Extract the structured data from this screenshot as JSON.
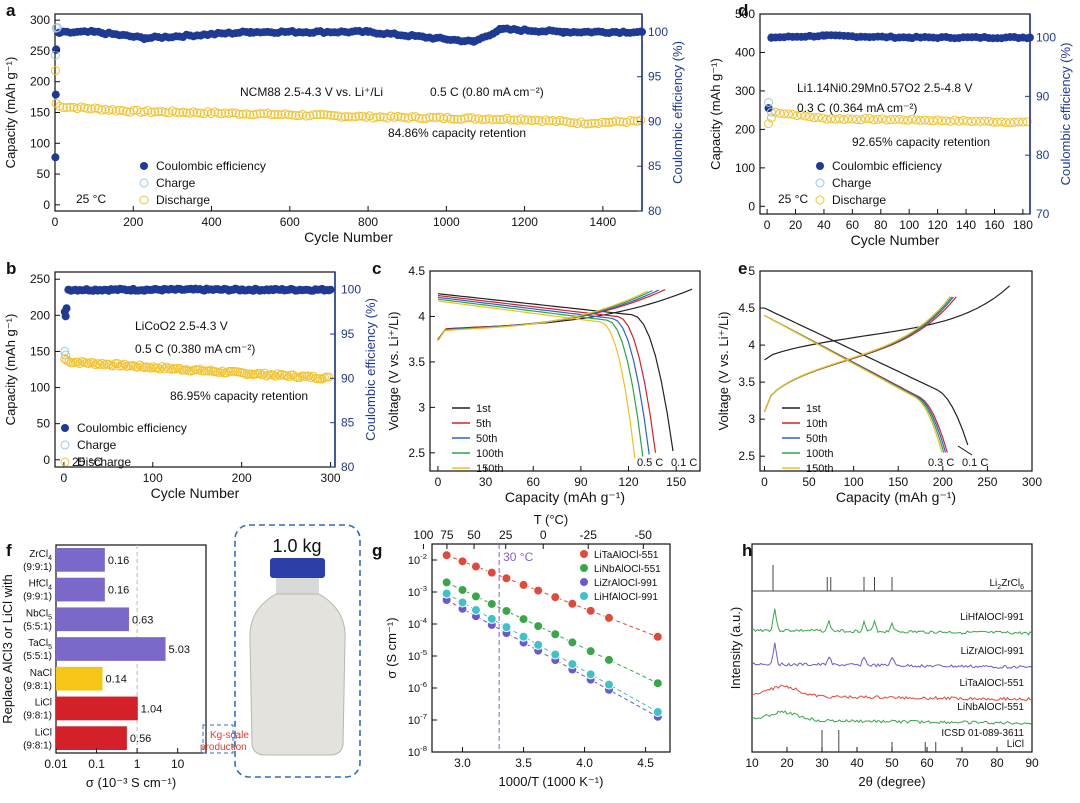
{
  "colors": {
    "ce": "#1f3a93",
    "charge": "#9ec6e6",
    "discharge": "#f2c230",
    "purple": "#7b68c8",
    "yellow": "#f5c518",
    "red": "#d42029",
    "dash_blue": "#2f6fbf",
    "guide_purple": "#8b5cc9",
    "red_text": "#e0402a",
    "ta": "#e04a3b",
    "nb": "#3aa64a",
    "zr": "#6a5acd",
    "hf": "#3ec3c9",
    "xrd_ref": "#444444"
  },
  "chart_data": [
    {
      "panel": "a",
      "type": "scatter",
      "xlabel": "Cycle Number",
      "ylabel": "Capacity (mAh g⁻¹)",
      "y2label": "Coulombic efficiency (%)",
      "xlim": [
        0,
        1500
      ],
      "ylim": [
        -10,
        310
      ],
      "y2lim": [
        80,
        102
      ],
      "xticks": [
        0,
        200,
        400,
        600,
        800,
        1000,
        1200,
        1400
      ],
      "yticks": [
        0,
        50,
        100,
        150,
        200,
        250,
        300
      ],
      "y2ticks": [
        80,
        85,
        90,
        95,
        100
      ],
      "series": [
        {
          "name": "Coulombic efficiency",
          "axis": "right",
          "x": [
            1,
            2,
            3,
            10,
            100,
            230,
            500,
            800,
            1070,
            1140,
            1300,
            1500
          ],
          "values": [
            86,
            93,
            98,
            99.9,
            100,
            99.3,
            100,
            100,
            98.9,
            100.3,
            100,
            100
          ]
        },
        {
          "name": "Charge",
          "axis": "left",
          "x": [
            1,
            3,
            6
          ],
          "values": [
            243,
            287,
            288
          ]
        },
        {
          "name": "Discharge",
          "axis": "left",
          "x": [
            1,
            3,
            10,
            200,
            500,
            800,
            1000,
            1200,
            1350,
            1500
          ],
          "values": [
            218,
            165,
            160,
            152,
            148,
            143,
            141,
            139,
            133,
            136
          ]
        }
      ],
      "annotations": [
        "NCM88 2.5-4.3 V vs. Li⁺/Li",
        "0.5 C (0.80 mA cm⁻²)",
        "84.86% capacity retention",
        "25 °C"
      ]
    },
    {
      "panel": "d",
      "type": "scatter",
      "xlabel": "Cycle Number",
      "ylabel": "Capacity (mAh g⁻¹)",
      "y2label": "Coulombic efficiency (%)",
      "xlim": [
        -5,
        185
      ],
      "ylim": [
        -20,
        500
      ],
      "y2lim": [
        70,
        104
      ],
      "xticks": [
        0,
        20,
        40,
        60,
        80,
        100,
        120,
        140,
        160,
        180
      ],
      "yticks": [
        0,
        100,
        200,
        300,
        400,
        500
      ],
      "y2ticks": [
        70,
        80,
        90,
        100
      ],
      "series": [
        {
          "name": "Coulombic efficiency",
          "axis": "right",
          "x": [
            1,
            3,
            40,
            100,
            185
          ],
          "values": [
            88,
            100,
            100.3,
            100,
            100
          ]
        },
        {
          "name": "Charge",
          "axis": "left",
          "x": [
            1,
            3
          ],
          "values": [
            270,
            245
          ]
        },
        {
          "name": "Discharge",
          "axis": "left",
          "x": [
            1,
            5,
            40,
            100,
            185
          ],
          "values": [
            215,
            245,
            228,
            225,
            218
          ]
        }
      ],
      "annotations": [
        "Li1.14Ni0.29Mn0.57O2 2.5-4.8 V",
        "0.3 C (0.364 mA cm⁻²)",
        "92.65% capacity retention",
        "25 °C"
      ]
    },
    {
      "panel": "b",
      "type": "scatter",
      "xlabel": "Cycle Number",
      "ylabel": "Capacity (mAh g⁻¹)",
      "y2label": "Coulombic efficiency (%)",
      "xlim": [
        -10,
        305
      ],
      "ylim": [
        -10,
        260
      ],
      "y2lim": [
        80,
        102
      ],
      "xticks": [
        0,
        100,
        200,
        300
      ],
      "yticks": [
        0,
        50,
        100,
        150,
        200,
        250
      ],
      "y2ticks": [
        80,
        85,
        90,
        95,
        100
      ],
      "series": [
        {
          "name": "Coulombic efficiency",
          "axis": "right",
          "x": [
            1,
            2,
            5,
            100,
            300
          ],
          "values": [
            97.5,
            97,
            100,
            100,
            100
          ]
        },
        {
          "name": "Charge",
          "axis": "left",
          "x": [
            1,
            2
          ],
          "values": [
            150,
            145
          ]
        },
        {
          "name": "Discharge",
          "axis": "left",
          "x": [
            1,
            5,
            100,
            200,
            300
          ],
          "values": [
            140,
            136,
            128,
            120,
            113
          ]
        }
      ],
      "annotations": [
        "LiCoO2 2.5-4.3 V",
        "0.5 C (0.380 mA cm⁻²)",
        "86.95% capacity retention",
        "25 °C"
      ]
    },
    {
      "panel": "c",
      "type": "line",
      "xlabel": "Capacity (mAh g⁻¹)",
      "ylabel": "Voltage (V vs. Li⁺/Li)",
      "xlim": [
        -5,
        165
      ],
      "ylim": [
        2.3,
        4.5
      ],
      "xticks": [
        0,
        30,
        60,
        90,
        120,
        150
      ],
      "yticks": [
        2.5,
        3.0,
        3.5,
        4.0,
        4.5
      ],
      "series": [
        {
          "name": "1st",
          "cap": 148,
          "charge_end": 160
        },
        {
          "name": "5th",
          "cap": 137,
          "charge_end": 143
        },
        {
          "name": "50th",
          "cap": 133,
          "charge_end": 139
        },
        {
          "name": "100th",
          "cap": 129,
          "charge_end": 135
        },
        {
          "name": "150th",
          "cap": 124,
          "charge_end": 132
        }
      ],
      "annotations": [
        "0.5 C",
        "0.1 C"
      ]
    },
    {
      "panel": "e",
      "type": "line",
      "xlabel": "Capacity (mAh g⁻¹)",
      "ylabel": "Voltage (V vs. Li⁺/Li)",
      "xlim": [
        -5,
        300
      ],
      "ylim": [
        2.3,
        5.0
      ],
      "xticks": [
        0,
        50,
        100,
        150,
        200,
        250,
        300
      ],
      "yticks": [
        2.5,
        3.0,
        3.5,
        4.0,
        4.5,
        5.0
      ],
      "series": [
        {
          "name": "1st",
          "cap": 228,
          "charge_end": 275
        },
        {
          "name": "10th",
          "cap": 205,
          "charge_end": 215
        },
        {
          "name": "50th",
          "cap": 203,
          "charge_end": 212
        },
        {
          "name": "100th",
          "cap": 201,
          "charge_end": 210
        },
        {
          "name": "150th",
          "cap": 199,
          "charge_end": 208
        }
      ],
      "annotations": [
        "0.3 C",
        "0.1 C"
      ]
    },
    {
      "panel": "f",
      "type": "bar",
      "xlabel": "σ (10⁻³ S cm⁻¹)",
      "ylabel": "Replace AlCl3 or LiCl with",
      "xscale": "log",
      "xlim": [
        0.01,
        50
      ],
      "xticks": [
        "0.01",
        "0.1",
        "1",
        "10"
      ],
      "categories": [
        {
          "main": "ZrCl4",
          "ratio": "(9:9:1)"
        },
        {
          "main": "HfCl4",
          "ratio": "(9:9:1)"
        },
        {
          "main": "NbCl5",
          "ratio": "(5:5:1)"
        },
        {
          "main": "TaCl5",
          "ratio": "(5:5:1)"
        },
        {
          "main": "NaCl",
          "ratio": "(9:8:1)"
        },
        {
          "main": "LiCl",
          "ratio": "(9:8:1)"
        },
        {
          "main": "LiCl",
          "ratio": "(9:8:1)"
        }
      ],
      "values": [
        0.16,
        0.16,
        0.63,
        5.03,
        0.14,
        1.04,
        0.56
      ],
      "labels": [
        "0.16",
        "0.16",
        "0.63",
        "5.03",
        "0.14",
        "1.04",
        "0.56"
      ],
      "colors": [
        "purple",
        "purple",
        "purple",
        "purple",
        "yellow",
        "red",
        "red"
      ],
      "reference_line": 1,
      "callout": "Kg-scale production",
      "photo_label": "1.0 kg"
    },
    {
      "panel": "g",
      "type": "scatter",
      "xlabel": "1000/T (1000 K⁻¹)",
      "ylabel": "σ (S cm⁻¹)",
      "top_label": "T (°C)",
      "xlim": [
        2.75,
        4.7
      ],
      "ylog_min": -8,
      "ylog_max": -1.5,
      "xticks": [
        "3.0",
        "3.5",
        "4.0",
        "4.5"
      ],
      "top_ticks": [
        "100",
        "75",
        "50",
        "25",
        "0",
        "-25",
        "-50"
      ],
      "ytick_exp": [
        "-2",
        "-3",
        "-4",
        "-5",
        "-6",
        "-7",
        "-8"
      ],
      "guide_x": 3.3,
      "guide_label": "30 °C",
      "series": [
        {
          "name": "LiTaAlOCl-551",
          "color": "ta",
          "log_start": -1.85,
          "log_end": -4.4
        },
        {
          "name": "LiNbAlOCl-551",
          "color": "nb",
          "log_start": -2.7,
          "log_end": -5.85
        },
        {
          "name": "LiZrAlOCl-991",
          "color": "zr",
          "log_start": -3.25,
          "log_end": -6.9
        },
        {
          "name": "LiHfAlOCl-991",
          "color": "hf",
          "log_start": -3.05,
          "log_end": -6.75
        }
      ]
    },
    {
      "panel": "h",
      "type": "line",
      "xlabel": "2θ (degree)",
      "ylabel": "Intensity (a.u.)",
      "xlim": [
        10,
        90
      ],
      "xticks": [
        10,
        20,
        30,
        40,
        50,
        60,
        70,
        80,
        90
      ],
      "series": [
        {
          "name": "Li2ZrCl6",
          "kind": "ref",
          "peaks": [
            16,
            31.5,
            32.5,
            42,
            45,
            50
          ]
        },
        {
          "name": "LiHfAlOCl-991",
          "color": "nb",
          "peaks": [
            16.5,
            32,
            42,
            45,
            50
          ]
        },
        {
          "name": "LiZrAlOCl-991",
          "color": "zr",
          "peaks": [
            16.5,
            32,
            42,
            50
          ]
        },
        {
          "name": "LiTaAlOCl-551",
          "color": "ta",
          "peaks": []
        },
        {
          "name": "LiNbAlOCl-551",
          "color": "nb",
          "peaks": []
        },
        {
          "name": "ICSD 01-089-3611 LiCl",
          "kind": "ref",
          "peaks": [
            30,
            34.8,
            50,
            59.5,
            62.5
          ]
        }
      ]
    }
  ],
  "panel_labels": [
    "a",
    "b",
    "c",
    "d",
    "e",
    "f",
    "g",
    "h"
  ],
  "legend_cycle": {
    "ce": "Coulombic efficiency",
    "charge": "Charge",
    "discharge": "Discharge"
  },
  "labels": {
    "a_title": "NCM88 2.5-4.3 V vs. Li⁺/Li",
    "a_rate": "0.5 C (0.80 mA cm⁻²)",
    "a_ret": "84.86% capacity retention",
    "temp": "25 °C",
    "d_formula": "Li1.14Ni0.29Mn0.57O2 2.5-4.8 V",
    "d_rate": "0.3 C (0.364 mA cm⁻²)",
    "d_ret": "92.65% capacity retention",
    "b_title": "LiCoO2 2.5-4.3 V",
    "b_rate": "0.5 C (0.380 mA cm⁻²)",
    "b_ret": "86.95% capacity retention",
    "c_05": "0.5 C",
    "c_01": "0.1 C",
    "e_03": "0.3 C",
    "e_01": "0.1 C",
    "f_callout": "Kg-scale production",
    "f_photo": "1.0 kg"
  }
}
